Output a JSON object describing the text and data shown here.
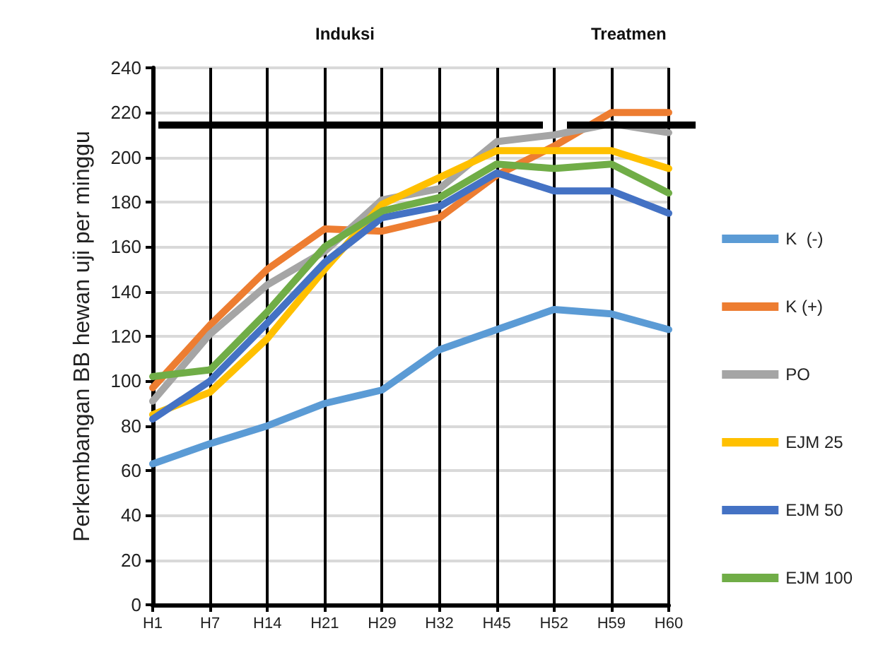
{
  "chart_data": {
    "type": "line",
    "ylabel": "Perkembangan BB hewan uji per minggu",
    "categories": [
      "H1",
      "H7",
      "H14",
      "H21",
      "H29",
      "H32",
      "H45",
      "H52",
      "H59",
      "H60"
    ],
    "series": [
      {
        "name": "K  (-)",
        "color": "#5b9bd5",
        "values": [
          63,
          72,
          80,
          90,
          96,
          114,
          123,
          132,
          130,
          123
        ]
      },
      {
        "name": "K (+)",
        "color": "#ed7d31",
        "values": [
          97,
          125,
          150,
          168,
          167,
          173,
          192,
          205,
          220,
          220
        ]
      },
      {
        "name": "PO",
        "color": "#a5a5a5",
        "values": [
          91,
          121,
          143,
          158,
          181,
          186,
          207,
          210,
          215,
          211
        ]
      },
      {
        "name": "EJM 25",
        "color": "#ffc000",
        "values": [
          85,
          95,
          119,
          150,
          179,
          191,
          203,
          203,
          203,
          195
        ]
      },
      {
        "name": "EJM 50",
        "color": "#4472c4",
        "values": [
          83,
          100,
          126,
          153,
          173,
          178,
          193,
          185,
          185,
          175
        ]
      },
      {
        "name": "EJM 100",
        "color": "#70ad47",
        "values": [
          102,
          105,
          131,
          160,
          176,
          182,
          197,
          195,
          197,
          184
        ]
      }
    ],
    "ylim": [
      0,
      240
    ],
    "yticks": [
      0,
      20,
      40,
      60,
      80,
      100,
      120,
      140,
      160,
      180,
      200,
      220,
      240
    ],
    "annotations": [
      "Induksi",
      "Treatmen"
    ],
    "grid": true,
    "legend": "right",
    "marker": "none",
    "line_style": "solid"
  }
}
